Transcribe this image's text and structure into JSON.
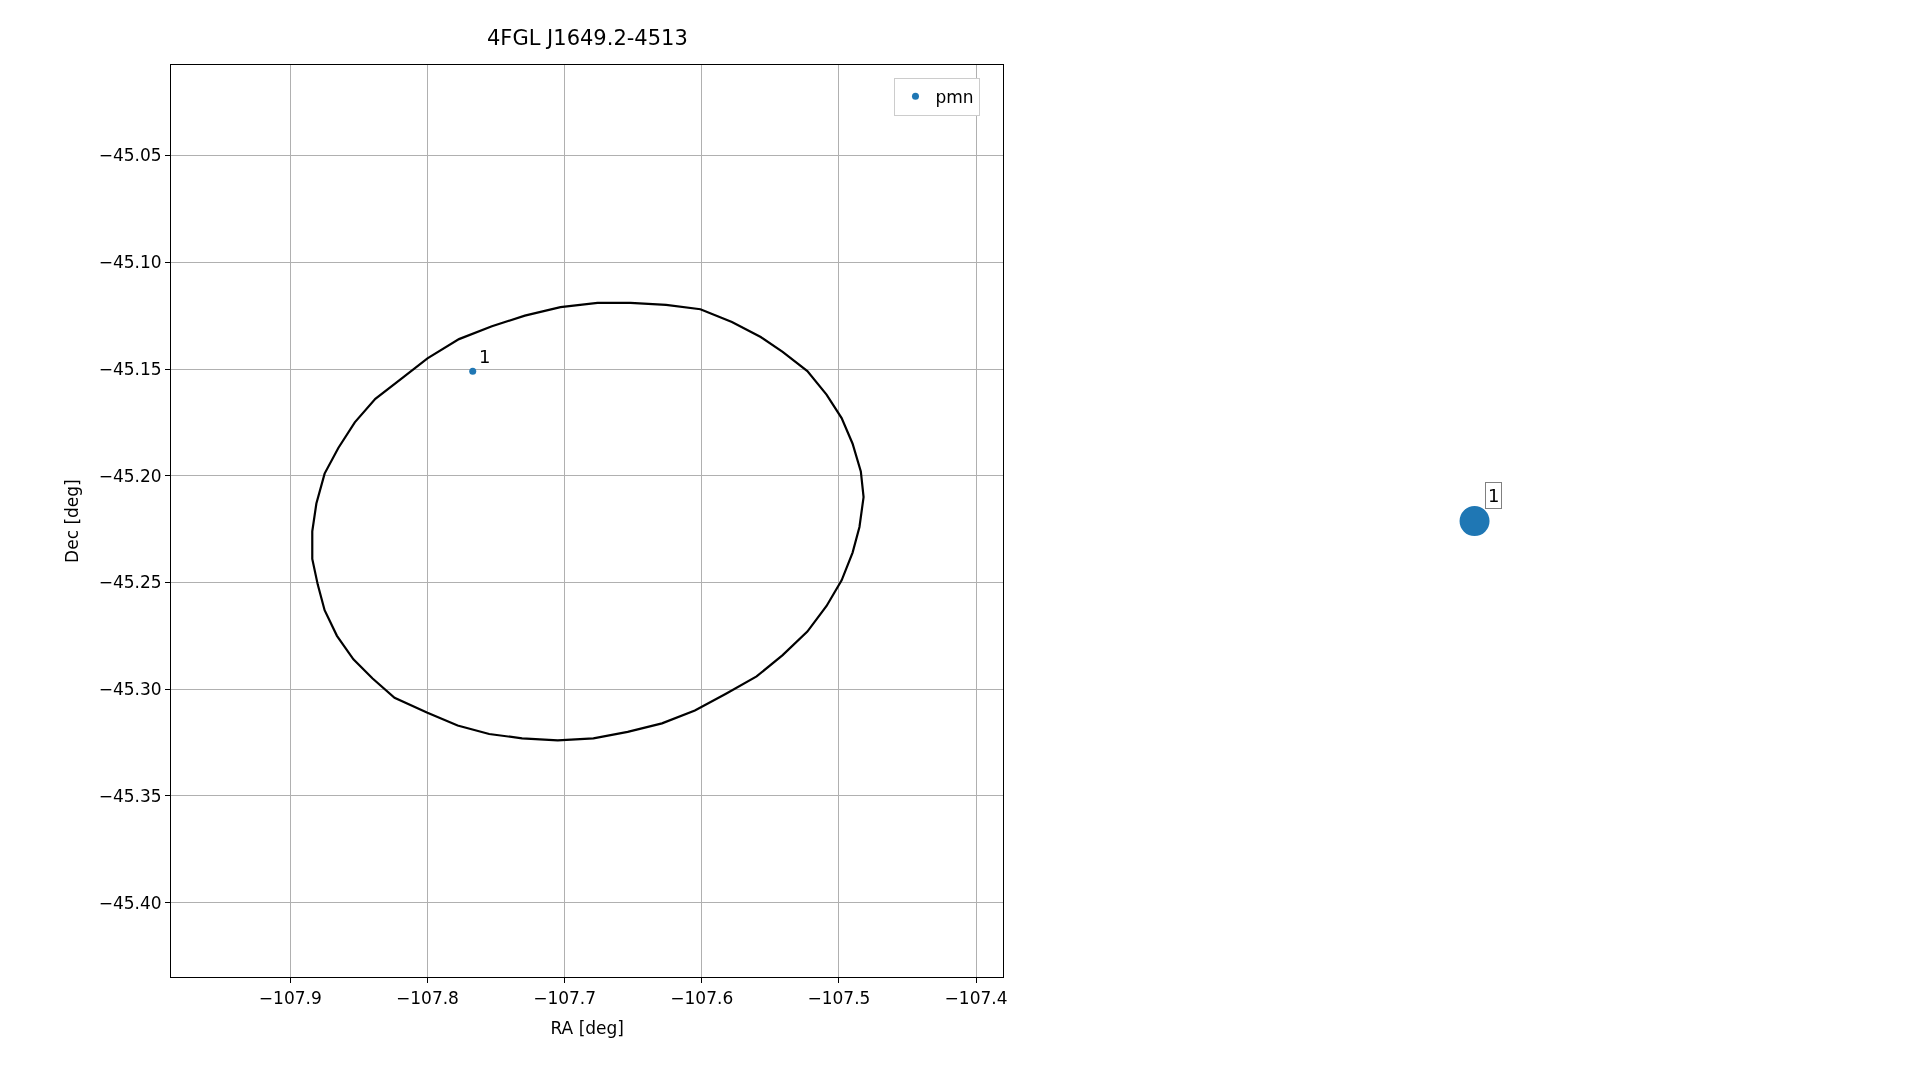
{
  "chart_data": [
    {
      "type": "scatter",
      "title": "4FGL J1649.2-4513",
      "xlabel": "RA [deg]",
      "ylabel": "Dec [deg]",
      "xlim": [
        -107.987,
        -107.38
      ],
      "ylim": [
        -45.435,
        -45.0075
      ],
      "xticks": [
        -107.9,
        -107.8,
        -107.7,
        -107.6,
        -107.5,
        -107.4
      ],
      "yticks": [
        {
          "value": -45.4,
          "label": "−45.40"
        },
        -45.35,
        {
          "value": -45.3,
          "label": "−45.30"
        },
        -45.25,
        {
          "value": -45.2,
          "label": "−45.20"
        },
        -45.15,
        {
          "value": -45.1,
          "label": "−45.10"
        },
        -45.05
      ],
      "grid": true,
      "legend": "top right",
      "marker": "circle",
      "series": [
        {
          "name": "pmn",
          "type": "scatter",
          "color": "#1f77b4",
          "x": [
            -107.767
          ],
          "values": [
            -45.151
          ]
        }
      ],
      "annotations": [
        {
          "text": "1",
          "x": -107.767,
          "y": -45.151
        }
      ]
    },
    {
      "type": "other",
      "color": "#1f77b4",
      "annotations": [
        "1"
      ]
    }
  ]
}
